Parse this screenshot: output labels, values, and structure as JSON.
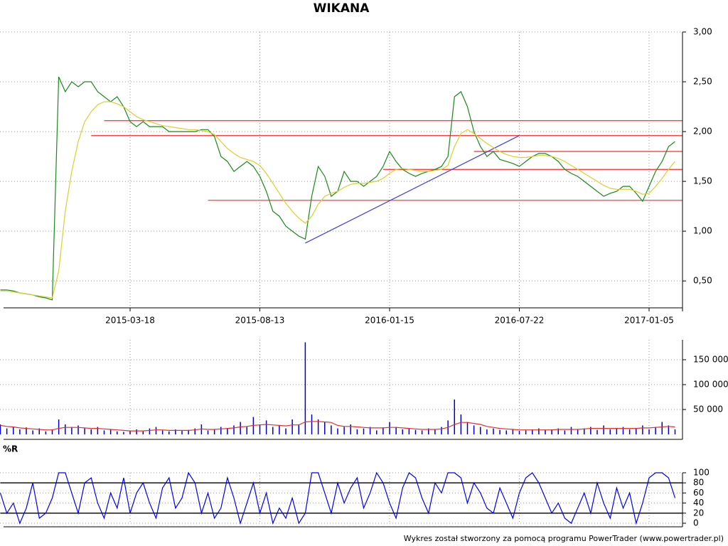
{
  "chart_data": [
    {
      "type": "line",
      "title": "WIKANA",
      "categories": [
        null,
        null,
        null,
        null,
        null,
        null,
        null,
        null,
        null,
        null,
        null,
        null,
        null,
        null,
        null,
        null,
        null,
        null,
        null,
        null,
        "2015-03-18",
        null,
        null,
        null,
        null,
        null,
        null,
        null,
        null,
        null,
        null,
        null,
        null,
        null,
        null,
        null,
        null,
        null,
        null,
        null,
        "2015-08-13",
        null,
        null,
        null,
        null,
        null,
        null,
        null,
        null,
        null,
        null,
        null,
        null,
        null,
        null,
        null,
        null,
        null,
        null,
        null,
        "2016-01-15",
        null,
        null,
        null,
        null,
        null,
        null,
        null,
        null,
        null,
        null,
        null,
        null,
        null,
        null,
        null,
        null,
        null,
        null,
        null,
        "2016-07-22",
        null,
        null,
        null,
        null,
        null,
        null,
        null,
        null,
        null,
        null,
        null,
        null,
        null,
        null,
        null,
        null,
        null,
        null,
        null,
        "2017-01-05",
        null,
        null,
        null,
        null
      ],
      "series": [
        {
          "color": "#1a8a1a",
          "values": [
            0.41,
            0.41,
            0.4,
            0.38,
            0.37,
            0.36,
            0.34,
            0.33,
            0.31,
            2.55,
            2.4,
            2.5,
            2.45,
            2.5,
            2.5,
            2.4,
            2.35,
            2.3,
            2.35,
            2.25,
            2.1,
            2.05,
            2.1,
            2.05,
            2.05,
            2.05,
            2.0,
            2.0,
            2.0,
            2.0,
            2.0,
            2.02,
            2.02,
            1.95,
            1.75,
            1.7,
            1.6,
            1.65,
            1.7,
            1.65,
            1.55,
            1.4,
            1.2,
            1.15,
            1.05,
            1.0,
            0.95,
            0.92,
            1.35,
            1.65,
            1.55,
            1.35,
            1.4,
            1.6,
            1.5,
            1.5,
            1.45,
            1.5,
            1.55,
            1.65,
            1.8,
            1.7,
            1.62,
            1.58,
            1.55,
            1.58,
            1.6,
            1.62,
            1.65,
            1.75,
            2.35,
            2.4,
            2.25,
            2.0,
            1.85,
            1.75,
            1.8,
            1.72,
            1.7,
            1.68,
            1.65,
            1.7,
            1.75,
            1.78,
            1.78,
            1.75,
            1.7,
            1.62,
            1.58,
            1.55,
            1.5,
            1.45,
            1.4,
            1.35,
            1.38,
            1.4,
            1.45,
            1.45,
            1.38,
            1.3,
            1.45,
            1.6,
            1.7,
            1.85,
            1.9
          ]
        },
        {
          "color": "#d8d030",
          "values": [
            0.4,
            0.4,
            0.39,
            0.38,
            0.37,
            0.36,
            0.35,
            0.34,
            0.33,
            0.6,
            1.2,
            1.6,
            1.9,
            2.1,
            2.2,
            2.27,
            2.3,
            2.3,
            2.28,
            2.25,
            2.2,
            2.15,
            2.12,
            2.1,
            2.08,
            2.06,
            2.05,
            2.04,
            2.03,
            2.02,
            2.02,
            2.01,
            2.0,
            1.97,
            1.9,
            1.83,
            1.78,
            1.74,
            1.72,
            1.7,
            1.66,
            1.58,
            1.48,
            1.38,
            1.28,
            1.2,
            1.13,
            1.08,
            1.15,
            1.27,
            1.35,
            1.38,
            1.4,
            1.44,
            1.47,
            1.48,
            1.48,
            1.49,
            1.5,
            1.53,
            1.58,
            1.62,
            1.63,
            1.62,
            1.61,
            1.6,
            1.6,
            1.61,
            1.62,
            1.66,
            1.85,
            1.98,
            2.02,
            1.98,
            1.93,
            1.88,
            1.84,
            1.8,
            1.77,
            1.75,
            1.74,
            1.74,
            1.75,
            1.76,
            1.76,
            1.75,
            1.73,
            1.7,
            1.66,
            1.62,
            1.58,
            1.54,
            1.5,
            1.46,
            1.43,
            1.42,
            1.42,
            1.42,
            1.4,
            1.37,
            1.38,
            1.45,
            1.53,
            1.62,
            1.7
          ]
        }
      ],
      "ylim": [
        0.23,
        3.0
      ],
      "yticks": [
        {
          "value": 0.5,
          "label": "0,50"
        },
        {
          "value": 1.0,
          "label": "1,00"
        },
        {
          "value": 1.5,
          "label": "1,50"
        },
        {
          "value": 2.0,
          "label": "2,00"
        },
        {
          "value": 2.5,
          "label": "2,50"
        },
        {
          "value": 3.0,
          "label": "3,00"
        }
      ],
      "grid": true,
      "hlines": [
        {
          "value": 2.11,
          "from": 16,
          "color": "#ff4040"
        },
        {
          "value": 1.96,
          "from": 14,
          "color": "#ff4040"
        },
        {
          "value": 1.8,
          "from": 73,
          "color": "#ff4040"
        },
        {
          "value": 1.62,
          "from": 59,
          "color": "#ff4040"
        },
        {
          "value": 1.31,
          "from": 32,
          "color": "#ff4040"
        }
      ],
      "trendline": {
        "from": [
          47,
          0.88
        ],
        "to": [
          80,
          1.96
        ],
        "color": "#4040e0"
      }
    },
    {
      "type": "bar",
      "series": [
        {
          "color": "#0000cc",
          "values": [
            20000,
            12000,
            15000,
            10000,
            14000,
            8000,
            12000,
            6000,
            10000,
            30000,
            20000,
            15000,
            18000,
            12000,
            10000,
            15000,
            8000,
            10000,
            6000,
            5000,
            8000,
            10000,
            6000,
            12000,
            15000,
            8000,
            6000,
            10000,
            7000,
            9000,
            12000,
            20000,
            8000,
            10000,
            15000,
            12000,
            18000,
            25000,
            15000,
            35000,
            20000,
            28000,
            15000,
            18000,
            12000,
            30000,
            20000,
            185000,
            40000,
            30000,
            25000,
            18000,
            12000,
            15000,
            20000,
            10000,
            12000,
            15000,
            8000,
            14000,
            25000,
            15000,
            10000,
            12000,
            9000,
            8000,
            12000,
            10000,
            15000,
            28000,
            70000,
            40000,
            25000,
            18000,
            15000,
            10000,
            12000,
            9000,
            8000,
            10000,
            7000,
            8000,
            10000,
            12000,
            9000,
            10000,
            12000,
            8000,
            15000,
            10000,
            12000,
            15000,
            9000,
            18000,
            10000,
            12000,
            15000,
            10000,
            12000,
            18000,
            10000,
            15000,
            25000,
            18000,
            10000
          ]
        },
        {
          "type": "line",
          "color": "#e03030",
          "values": [
            18000,
            16000,
            15000,
            13000,
            12000,
            11000,
            10000,
            9000,
            9000,
            12000,
            14000,
            14000,
            14000,
            13000,
            12000,
            12000,
            11000,
            10000,
            9000,
            8000,
            7000,
            7000,
            7000,
            8000,
            9000,
            9000,
            8000,
            8000,
            8000,
            8000,
            9000,
            11000,
            10000,
            10000,
            11000,
            12000,
            13000,
            15000,
            16000,
            18000,
            19000,
            20000,
            19000,
            18000,
            17000,
            19000,
            19000,
            25000,
            26000,
            26000,
            25000,
            24000,
            18000,
            16000,
            16000,
            15000,
            14000,
            13000,
            13000,
            13000,
            14000,
            14000,
            13000,
            12000,
            11000,
            10000,
            10000,
            10000,
            11000,
            14000,
            20000,
            24000,
            24000,
            22000,
            20000,
            16000,
            14000,
            12000,
            11000,
            10000,
            9000,
            9000,
            9000,
            9000,
            9000,
            9000,
            10000,
            10000,
            10000,
            10000,
            11000,
            12000,
            12000,
            12000,
            12000,
            12000,
            12000,
            12000,
            12000,
            13000,
            13000,
            14000,
            15000,
            16000,
            15000
          ]
        }
      ],
      "ylim": [
        0,
        190000
      ],
      "yticks": [
        {
          "value": 50000,
          "label": "50 000"
        },
        {
          "value": 100000,
          "label": "100 000"
        },
        {
          "value": 150000,
          "label": "150 000"
        }
      ],
      "grid": true
    },
    {
      "type": "line",
      "title": "%R",
      "series": [
        {
          "color": "#0000ee",
          "values": [
            60,
            20,
            40,
            0,
            30,
            80,
            10,
            20,
            50,
            100,
            100,
            60,
            20,
            80,
            90,
            40,
            10,
            60,
            30,
            90,
            20,
            60,
            80,
            40,
            10,
            70,
            90,
            30,
            50,
            100,
            80,
            20,
            60,
            10,
            30,
            90,
            50,
            0,
            40,
            80,
            20,
            60,
            0,
            30,
            10,
            50,
            0,
            20,
            100,
            100,
            60,
            20,
            80,
            40,
            70,
            90,
            30,
            60,
            100,
            80,
            40,
            10,
            70,
            100,
            90,
            50,
            20,
            80,
            60,
            100,
            100,
            90,
            40,
            80,
            60,
            30,
            20,
            70,
            40,
            10,
            60,
            90,
            100,
            80,
            50,
            20,
            40,
            10,
            0,
            30,
            60,
            20,
            80,
            40,
            10,
            70,
            30,
            60,
            0,
            40,
            90,
            100,
            100,
            90,
            50
          ]
        }
      ],
      "ylim": [
        0,
        100
      ],
      "yticks": [
        0,
        20,
        40,
        60,
        80,
        100
      ],
      "grid": true,
      "hlines": [
        {
          "value": 20,
          "from": 0,
          "color": "#000000"
        },
        {
          "value": 80,
          "from": 0,
          "color": "#000000"
        }
      ]
    }
  ],
  "footer": "Wykres został stworzony za pomocą programu PowerTrader (www.powertrader.pl)"
}
